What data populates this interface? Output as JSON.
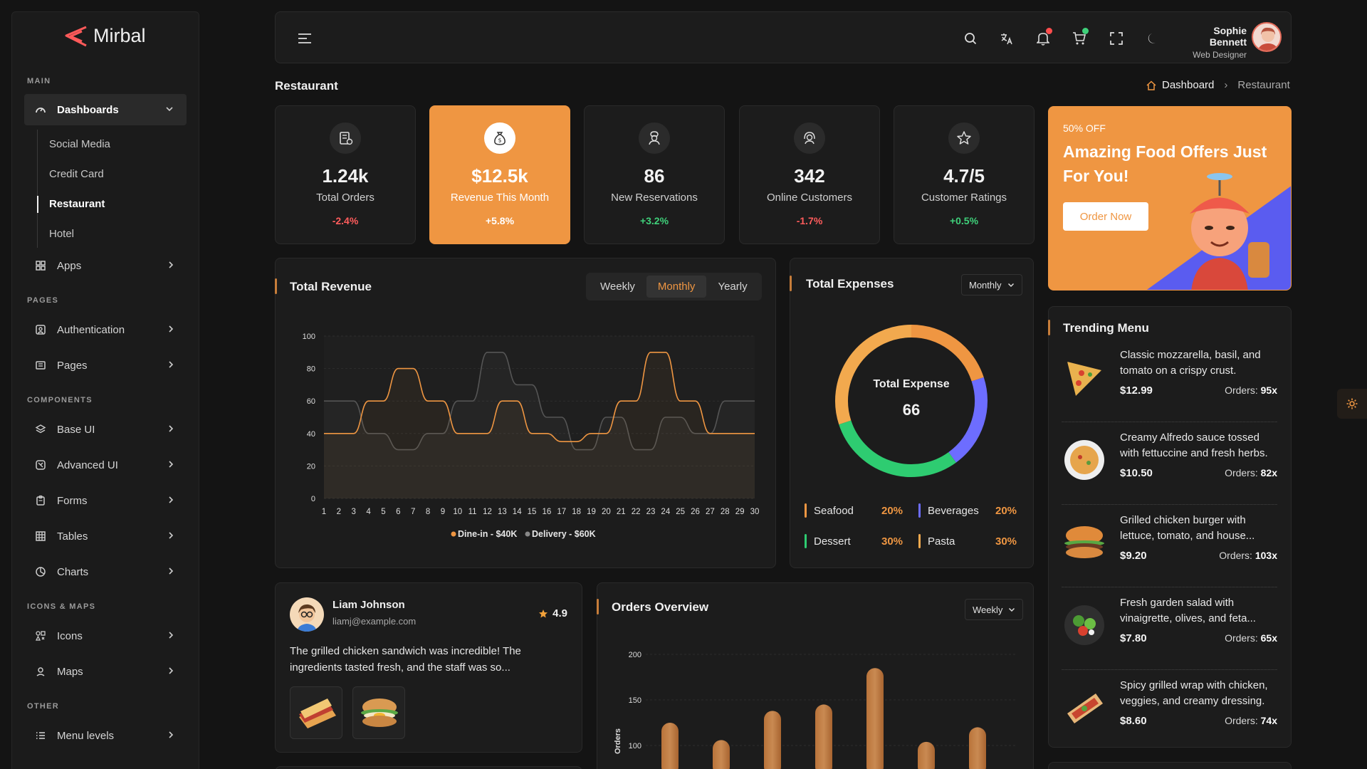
{
  "brand": {
    "name": "Mirbal"
  },
  "sidebar": {
    "sections": {
      "main": "MAIN",
      "pages": "PAGES",
      "components": "COMPONENTS",
      "icons_maps": "ICONS & MAPS",
      "other": "OTHER"
    },
    "dashboards": "Dashboards",
    "dash_subs": [
      "Social Media",
      "Credit Card",
      "Restaurant",
      "Hotel"
    ],
    "apps": "Apps",
    "authentication": "Authentication",
    "pages": "Pages",
    "base_ui": "Base UI",
    "advanced_ui": "Advanced UI",
    "forms": "Forms",
    "tables": "Tables",
    "charts": "Charts",
    "icons": "Icons",
    "maps": "Maps",
    "menu_levels": "Menu levels"
  },
  "header": {
    "user_name": "Sophie Bennett",
    "user_role": "Web Designer",
    "notif_color": "#ff4d4d",
    "cart_color": "#3fd07a"
  },
  "page": {
    "title": "Restaurant",
    "breadcrumb_home": "Dashboard",
    "breadcrumb_current": "Restaurant"
  },
  "stats": [
    {
      "value": "1.24k",
      "label": "Total Orders",
      "change": "-2.4%"
    },
    {
      "value": "$12.5k",
      "label": "Revenue This Month",
      "change": "+5.8%"
    },
    {
      "value": "86",
      "label": "New Reservations",
      "change": "+3.2%"
    },
    {
      "value": "342",
      "label": "Online Customers",
      "change": "-1.7%"
    },
    {
      "value": "4.7/5",
      "label": "Customer Ratings",
      "change": "+0.5%"
    }
  ],
  "promo": {
    "tag": "50% OFF",
    "title": "Amazing Food Offers Just For You!",
    "button": "Order Now"
  },
  "revenue": {
    "title": "Total Revenue",
    "tabs": [
      "Weekly",
      "Monthly",
      "Yearly"
    ],
    "active_tab": "Monthly"
  },
  "expenses": {
    "title": "Total Expenses",
    "dropdown": "Monthly",
    "center_label": "Total Expense",
    "center_value": "66",
    "legend": [
      {
        "name": "Seafood",
        "pct": "20%",
        "color": "#ef9642"
      },
      {
        "name": "Beverages",
        "pct": "20%",
        "color": "#6d6dff"
      },
      {
        "name": "Dessert",
        "pct": "30%",
        "color": "#2ecc71"
      },
      {
        "name": "Pasta",
        "pct": "30%",
        "color": "#f2a94e"
      }
    ]
  },
  "review": {
    "name": "Liam Johnson",
    "email": "liamj@example.com",
    "rating": "4.9",
    "text": "The grilled chicken sandwich was incredible! The ingredients tasted fresh, and the staff was so..."
  },
  "orders_overview": {
    "title": "Orders Overview",
    "dropdown": "Weekly"
  },
  "trending": {
    "title": "Trending Menu",
    "orders_label": "Orders:",
    "items": [
      {
        "desc": "Classic mozzarella, basil, and tomato on a crispy crust.",
        "price": "$12.99",
        "orders": "95x"
      },
      {
        "desc": "Creamy Alfredo sauce tossed with fettuccine and fresh herbs.",
        "price": "$10.50",
        "orders": "82x"
      },
      {
        "desc": "Grilled chicken burger with lettuce, tomato, and house...",
        "price": "$9.20",
        "orders": "103x"
      },
      {
        "desc": "Fresh garden salad with vinaigrette, olives, and feta...",
        "price": "$7.80",
        "orders": "65x"
      },
      {
        "desc": "Spicy grilled wrap with chicken, veggies, and creamy dressing.",
        "price": "$8.60",
        "orders": "74x"
      }
    ]
  },
  "chart_data": [
    {
      "type": "line",
      "title": "Total Revenue",
      "x": [
        1,
        2,
        3,
        4,
        5,
        6,
        7,
        8,
        9,
        10,
        11,
        12,
        13,
        14,
        15,
        16,
        17,
        18,
        19,
        20,
        21,
        22,
        23,
        24,
        25,
        26,
        27,
        28,
        29,
        30
      ],
      "ylim": [
        0,
        100
      ],
      "yticks": [
        0,
        20,
        40,
        60,
        80,
        100
      ],
      "series": [
        {
          "name": "Dine-in - $40K",
          "color": "#ef9642",
          "values": [
            40,
            40,
            40,
            60,
            60,
            80,
            80,
            60,
            60,
            40,
            40,
            40,
            60,
            60,
            40,
            40,
            35,
            35,
            40,
            40,
            60,
            60,
            90,
            90,
            60,
            60,
            40,
            40,
            40,
            40
          ]
        },
        {
          "name": "Delivery - $60K",
          "color": "#555555",
          "values": [
            60,
            60,
            60,
            40,
            40,
            30,
            30,
            40,
            40,
            60,
            60,
            90,
            90,
            70,
            70,
            50,
            50,
            30,
            30,
            50,
            50,
            30,
            30,
            50,
            50,
            40,
            40,
            60,
            60,
            60
          ]
        }
      ]
    },
    {
      "type": "pie",
      "title": "Total Expenses",
      "categories": [
        "Seafood",
        "Beverages",
        "Dessert",
        "Pasta"
      ],
      "values": [
        20,
        20,
        30,
        30
      ]
    },
    {
      "type": "bar",
      "title": "Orders Overview",
      "ylabel": "Orders",
      "yticks": [
        100,
        150,
        200
      ],
      "values": [
        125,
        106,
        138,
        145,
        185,
        104,
        120
      ]
    }
  ]
}
